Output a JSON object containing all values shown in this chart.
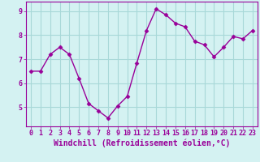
{
  "x": [
    0,
    1,
    2,
    3,
    4,
    5,
    6,
    7,
    8,
    9,
    10,
    11,
    12,
    13,
    14,
    15,
    16,
    17,
    18,
    19,
    20,
    21,
    22,
    23
  ],
  "y": [
    6.5,
    6.5,
    7.2,
    7.5,
    7.2,
    6.2,
    5.15,
    4.85,
    4.55,
    5.05,
    5.45,
    6.85,
    8.2,
    9.1,
    8.85,
    8.5,
    8.35,
    7.75,
    7.6,
    7.1,
    7.5,
    7.95,
    7.85,
    8.2
  ],
  "line_color": "#990099",
  "marker": "D",
  "markersize": 2.5,
  "linewidth": 1.0,
  "bg_color": "#d4f2f2",
  "grid_color": "#a8d8d8",
  "xlabel": "Windchill (Refroidissement éolien,°C)",
  "xlabel_fontsize": 7,
  "tick_fontsize": 6,
  "ylim": [
    4.2,
    9.4
  ],
  "yticks": [
    5,
    6,
    7,
    8,
    9
  ],
  "xticks": [
    0,
    1,
    2,
    3,
    4,
    5,
    6,
    7,
    8,
    9,
    10,
    11,
    12,
    13,
    14,
    15,
    16,
    17,
    18,
    19,
    20,
    21,
    22,
    23
  ]
}
